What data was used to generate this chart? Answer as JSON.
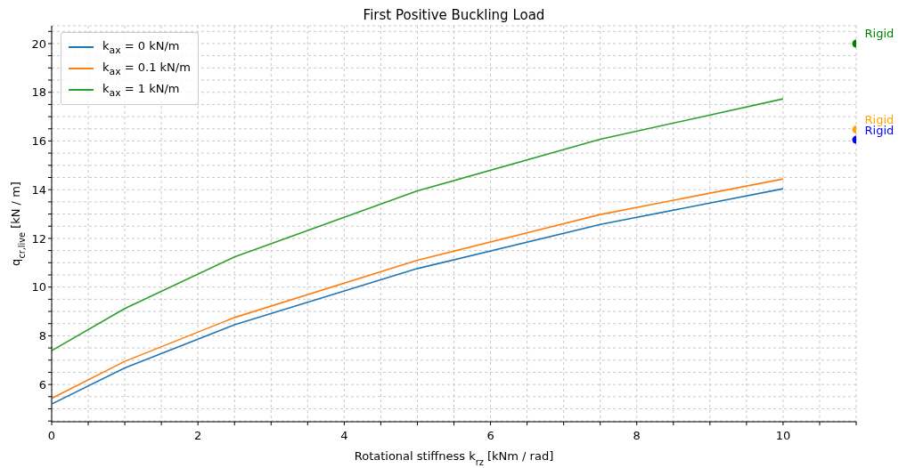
{
  "chart_data": {
    "type": "line",
    "title": "First Positive Buckling Load",
    "xlabel": "Rotational stiffness k$_{rz}$ [kNm / rad]",
    "ylabel": "q$_{cr,live}$ [kN / m]",
    "xlim": [
      0,
      11
    ],
    "ylim": [
      4.47,
      20.73
    ],
    "xticks": [
      0,
      {
        "value": 0.5,
        "label": null
      },
      {
        "value": 1,
        "label": null
      },
      {
        "value": 1.5,
        "label": null
      },
      2,
      {
        "value": 2.5,
        "label": null
      },
      {
        "value": 3,
        "label": null
      },
      {
        "value": 3.5,
        "label": null
      },
      4,
      {
        "value": 4.5,
        "label": null
      },
      {
        "value": 5,
        "label": null
      },
      {
        "value": 5.5,
        "label": null
      },
      6,
      {
        "value": 6.5,
        "label": null
      },
      {
        "value": 7,
        "label": null
      },
      {
        "value": 7.5,
        "label": null
      },
      8,
      {
        "value": 8.5,
        "label": null
      },
      {
        "value": 9,
        "label": null
      },
      {
        "value": 9.5,
        "label": null
      },
      10,
      {
        "value": 10.5,
        "label": null
      },
      {
        "value": 11,
        "label": null
      }
    ],
    "yticks": [
      {
        "value": 4.5,
        "label": null
      },
      {
        "value": 5,
        "label": null
      },
      {
        "value": 5.5,
        "label": null
      },
      6,
      {
        "value": 6.5,
        "label": null
      },
      {
        "value": 7,
        "label": null
      },
      {
        "value": 7.5,
        "label": null
      },
      8,
      {
        "value": 8.5,
        "label": null
      },
      {
        "value": 9,
        "label": null
      },
      {
        "value": 9.5,
        "label": null
      },
      10,
      {
        "value": 10.5,
        "label": null
      },
      {
        "value": 11,
        "label": null
      },
      {
        "value": 11.5,
        "label": null
      },
      12,
      {
        "value": 12.5,
        "label": null
      },
      {
        "value": 13,
        "label": null
      },
      {
        "value": 13.5,
        "label": null
      },
      14,
      {
        "value": 14.5,
        "label": null
      },
      {
        "value": 15,
        "label": null
      },
      {
        "value": 15.5,
        "label": null
      },
      16,
      {
        "value": 16.5,
        "label": null
      },
      {
        "value": 17,
        "label": null
      },
      {
        "value": 17.5,
        "label": null
      },
      18,
      {
        "value": 18.5,
        "label": null
      },
      {
        "value": 19,
        "label": null
      },
      {
        "value": 19.5,
        "label": null
      },
      20,
      {
        "value": 20.5,
        "label": null
      }
    ],
    "grid": true,
    "legend": "top left",
    "marker": "none",
    "line_style": "solid",
    "series": [
      {
        "name": "k$_{ax}$ = 0 kN/m",
        "color": "#1f77b4",
        "x": [
          0,
          1,
          2.5,
          5,
          7.5,
          10
        ],
        "values": [
          5.2,
          6.68,
          8.45,
          10.76,
          12.57,
          14.04
        ]
      },
      {
        "name": "k$_{ax}$ = 0.1 kN/m",
        "color": "#ff7f0e",
        "x": [
          0,
          1,
          2.5,
          5,
          7.5,
          10
        ],
        "values": [
          5.43,
          6.95,
          8.75,
          11.1,
          12.98,
          14.44
        ]
      },
      {
        "name": "k$_{ax}$ = 1 kN/m",
        "color": "#2ca02c",
        "x": [
          0,
          1,
          2.5,
          5,
          7.5,
          10
        ],
        "values": [
          7.39,
          9.12,
          11.24,
          13.95,
          16.07,
          17.73
        ]
      },
      {
        "type": "scatter",
        "marker": "circle",
        "name": "Rigid",
        "color": "#0000ff",
        "x": [
          11
        ],
        "values": [
          16.05
        ]
      },
      {
        "type": "scatter",
        "marker": "circle",
        "name": "Rigid",
        "color": "#ffa500",
        "x": [
          11
        ],
        "values": [
          16.47
        ]
      },
      {
        "type": "scatter",
        "marker": "circle",
        "name": "Rigid",
        "color": "#008000",
        "x": [
          11
        ],
        "values": [
          20.0
        ]
      }
    ]
  }
}
